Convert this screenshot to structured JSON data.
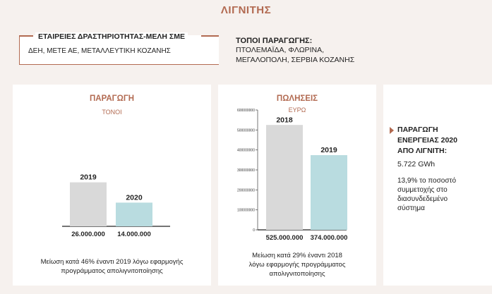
{
  "page": {
    "title": "ΛΙΓΝΙΤΗΣ",
    "companies": {
      "heading": "ΕΤΑΙΡΕΙΕΣ ΔΡΑΣΤΗΡΙΟΤΗΤΑΣ-ΜΕΛΗ ΣΜΕ",
      "text": "ΔΕΗ, ΜΕΤΕ ΑΕ, ΜΕΤΑΛΛΕΥΤΙΚΗ ΚΟΖΑΝΗΣ"
    },
    "places": {
      "heading": "ΤΟΠΟΙ ΠΑΡΑΓΩΓΗΣ:",
      "line1": "ΠΤΟΛΕΜΑΪΔΑ, ΦΛΩΡΙΝΑ,",
      "line2": "ΜΕΓΑΛΟΠΟΛΗ, ΣΕΡΒΙΑ ΚΟΖΑΝΗΣ"
    },
    "production": {
      "title": "ΠΑΡΑΓΩΓΗ",
      "unit": "ΤΟΝΟΙ",
      "note_line1": "Μείωση κατά 46% έναντι 2019 λόγω εφαρμογής",
      "note_line2": "προγράμματος απολιγνιτοποίησης"
    },
    "sales": {
      "title": "ΠΩΛΗΣΕΙΣ",
      "unit": "ΕΥΡΩ",
      "note_line1": "Μείωση κατά 29% έναντι 2018",
      "note_line2": "λόγω εφαρμογής προγράμματος",
      "note_line3": "απολιγνιτοποίησης"
    },
    "energy": {
      "heading_line1": "ΠΑΡΑΓΩΓΗ",
      "heading_line2": "ΕΝΕΡΓΕΙΑΣ 2020",
      "heading_line3": "ΑΠΟ ΛΙΓΝΙΤΗ:",
      "value": "5.722 GWh",
      "pct_line1": "13,9% το ποσοστό",
      "pct_line2": "συμμετοχής στο",
      "pct_line3": "διασυνδεδεμένο",
      "pct_line4": "σύστημα"
    },
    "colors": {
      "accent": "#b26a51",
      "bar_grey": "#d9d9d9",
      "bar_blue": "#b9dce0"
    }
  },
  "chart_data": [
    {
      "type": "bar",
      "title": "ΠΑΡΑΓΩΓΗ",
      "subtitle": "ΤΟΝΟΙ",
      "categories": [
        "2019",
        "2020"
      ],
      "values": [
        26000000,
        14000000
      ],
      "value_labels": [
        "26.000.000",
        "14.000.000"
      ],
      "colors": [
        "#d9d9d9",
        "#b9dce0"
      ],
      "ylim": [
        0,
        30000000
      ],
      "grid": false
    },
    {
      "type": "bar",
      "title": "ΠΩΛΗΣΕΙΣ",
      "subtitle": "ΕΥΡΩ",
      "categories": [
        "2018",
        "2019"
      ],
      "values": [
        525000000,
        374000000
      ],
      "value_labels": [
        "525.000.000",
        "374.000.000"
      ],
      "colors": [
        "#d9d9d9",
        "#b9dce0"
      ],
      "ylim": [
        0,
        600000000
      ],
      "yticks": [
        0,
        100000000,
        200000000,
        300000000,
        400000000,
        500000000,
        600000000
      ],
      "ytick_labels": [
        "0",
        "100000000",
        "200000000",
        "300000000",
        "400000000",
        "500000000",
        "600000000"
      ],
      "grid": false
    }
  ]
}
